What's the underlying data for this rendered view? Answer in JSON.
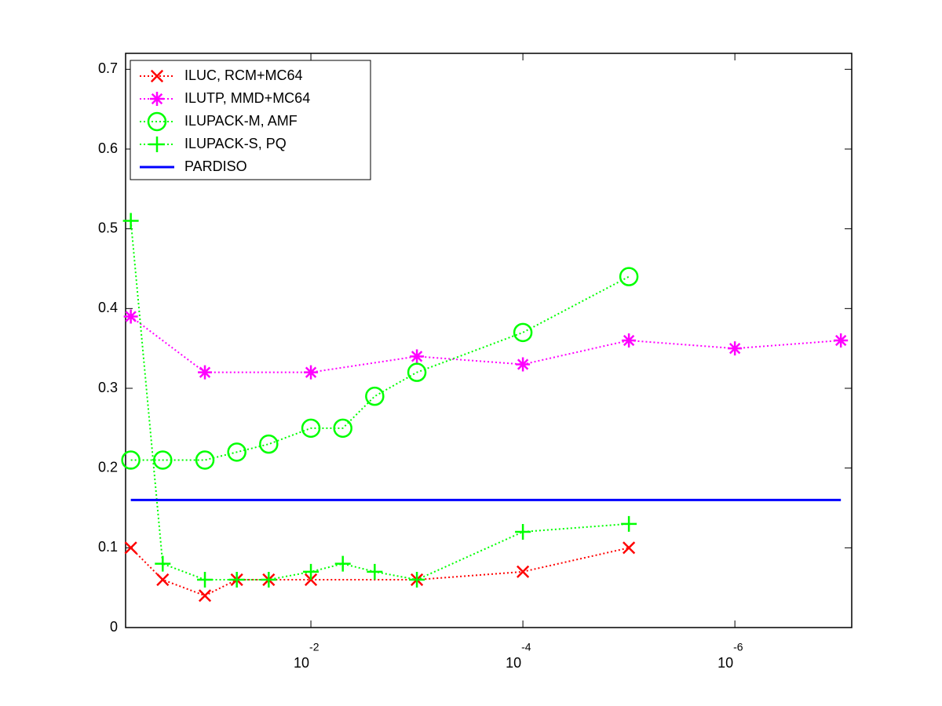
{
  "chart_data": {
    "type": "line",
    "xscale": "log",
    "x_reversed": true,
    "xlim": [
      7.9e-08,
      0.56
    ],
    "ylim": [
      0,
      0.72
    ],
    "xticks": [
      {
        "value": 0.01,
        "label": "10",
        "exponent": "-2"
      },
      {
        "value": 0.0001,
        "label": "10",
        "exponent": "-4"
      },
      {
        "value": 1e-06,
        "label": "10",
        "exponent": "-6"
      }
    ],
    "yticks": [
      0,
      0.1,
      0.2,
      0.3,
      0.4,
      0.5,
      0.6,
      0.7
    ],
    "grid": false,
    "legend": "upper left",
    "series": [
      {
        "name": "ILUC, RCM+MC64",
        "color": "#ff0000",
        "marker": "x",
        "linestyle": "dotted",
        "x": [
          0.5,
          0.25,
          0.1,
          0.05,
          0.025,
          0.01,
          0.001,
          0.0001,
          1e-05
        ],
        "values": [
          0.1,
          0.06,
          0.04,
          0.06,
          0.06,
          0.06,
          0.06,
          0.07,
          0.1
        ]
      },
      {
        "name": "ILUTP, MMD+MC64",
        "color": "#ff00ff",
        "marker": "*",
        "linestyle": "dotted",
        "x": [
          0.5,
          0.1,
          0.01,
          0.001,
          0.0001,
          1e-05,
          1e-06,
          1e-07
        ],
        "values": [
          0.39,
          0.32,
          0.32,
          0.34,
          0.33,
          0.36,
          0.35,
          0.36
        ]
      },
      {
        "name": "ILUPACK-M, AMF",
        "color": "#00ff00",
        "marker": "o",
        "linestyle": "dotted",
        "x": [
          0.5,
          0.25,
          0.1,
          0.05,
          0.025,
          0.01,
          0.005,
          0.0025,
          0.001,
          0.0001,
          1e-05
        ],
        "values": [
          0.21,
          0.21,
          0.21,
          0.22,
          0.23,
          0.25,
          0.25,
          0.29,
          0.32,
          0.37,
          0.44
        ]
      },
      {
        "name": "ILUPACK-S, PQ",
        "color": "#00ff00",
        "marker": "+",
        "linestyle": "dotted",
        "x": [
          0.5,
          0.25,
          0.1,
          0.05,
          0.025,
          0.01,
          0.005,
          0.0025,
          0.001,
          0.0001,
          1e-05
        ],
        "values": [
          0.51,
          0.08,
          0.06,
          0.06,
          0.06,
          0.07,
          0.08,
          0.07,
          0.06,
          0.12,
          0.13
        ]
      },
      {
        "name": "PARDISO",
        "color": "#0000ff",
        "marker": "none",
        "linestyle": "solid",
        "x": [
          0.5,
          1e-07
        ],
        "values": [
          0.16,
          0.16
        ]
      }
    ]
  }
}
